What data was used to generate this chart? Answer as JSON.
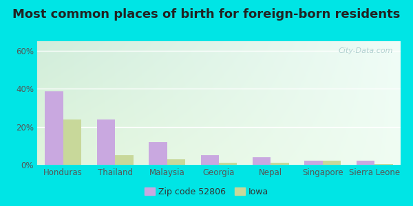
{
  "title": "Most common places of birth for foreign-born residents",
  "categories": [
    "Honduras",
    "Thailand",
    "Malaysia",
    "Georgia",
    "Nepal",
    "Singapore",
    "Sierra Leone"
  ],
  "zip_values": [
    38.5,
    24.0,
    12.0,
    5.0,
    4.0,
    2.0,
    2.0
  ],
  "iowa_values": [
    24.0,
    5.0,
    3.0,
    1.0,
    1.0,
    2.0,
    0.5
  ],
  "zip_color": "#c9a8e0",
  "iowa_color": "#c8d89a",
  "zip_label": "Zip code 52806",
  "iowa_label": "Iowa",
  "ylim": [
    0,
    65
  ],
  "yticks": [
    0,
    20,
    40,
    60
  ],
  "ytick_labels": [
    "0%",
    "20%",
    "40%",
    "60%"
  ],
  "bg_outer": "#00e5e5",
  "bg_plot_topleft": "#d4ede0",
  "bg_plot_topright": "#f0faf8",
  "bg_plot_bottom": "#e8f5e0",
  "title_fontsize": 13,
  "axis_fontsize": 8.5,
  "legend_fontsize": 9,
  "bar_width": 0.35
}
